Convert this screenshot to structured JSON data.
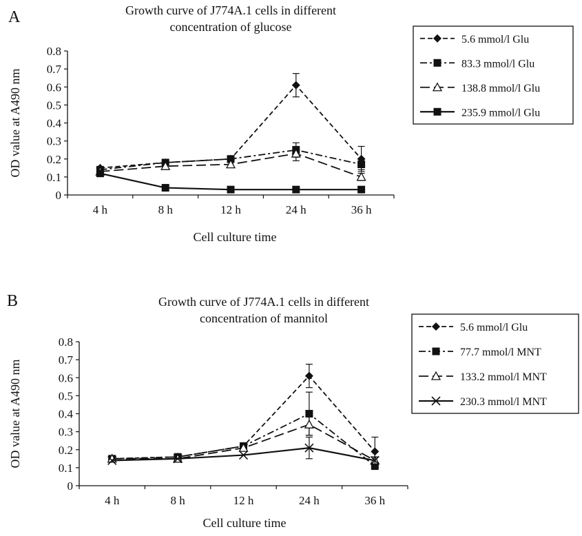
{
  "panels": [
    {
      "letter": "A",
      "chart_data": {
        "type": "line",
        "title": "Growth curve of J774A.1 cells in different concentration of glucose",
        "title_lines": [
          "Growth curve of J774A.1 cells in different",
          "concentration of glucose"
        ],
        "xlabel": "Cell culture time",
        "ylabel": "OD value at A490 nm",
        "categories": [
          "4 h",
          "8 h",
          "12 h",
          "24 h",
          "36 h"
        ],
        "ylim": [
          0,
          0.8
        ],
        "yticks": [
          "0",
          "0.1",
          "0.2",
          "0.3",
          "0.4",
          "0.5",
          "0.6",
          "0.7",
          "0.8"
        ],
        "grid": false,
        "legend_position": "top-right",
        "series": [
          {
            "name": "5.6 mmol/l Glu",
            "style": "dash",
            "marker": "diamond",
            "values": [
              0.15,
              0.18,
              0.2,
              0.61,
              0.2
            ],
            "errors": [
              0.005,
              0.01,
              0.01,
              0.065,
              0.07
            ]
          },
          {
            "name": "83.3 mmol/l Glu",
            "style": "dashdot",
            "marker": "square",
            "values": [
              0.14,
              0.18,
              0.2,
              0.25,
              0.17
            ],
            "errors": [
              0.005,
              0.01,
              0.01,
              0.04,
              0.03
            ]
          },
          {
            "name": "138.8 mmol/l Glu",
            "style": "longdash",
            "marker": "triangle",
            "values": [
              0.13,
              0.16,
              0.17,
              0.23,
              0.1
            ],
            "errors": [
              0.005,
              0.01,
              0.01,
              0.04,
              0.02
            ]
          },
          {
            "name": "235.9 mmol/l Glu",
            "style": "solid",
            "marker": "square",
            "values": [
              0.12,
              0.04,
              0.03,
              0.03,
              0.03
            ],
            "errors": [
              0.005,
              0.005,
              0.005,
              0.005,
              0.005
            ]
          }
        ]
      }
    },
    {
      "letter": "B",
      "chart_data": {
        "type": "line",
        "title": "Growth curve of J774A.1 cells in different concentration of mannitol",
        "title_lines": [
          "Growth curve of J774A.1 cells in different",
          "concentration of mannitol"
        ],
        "xlabel": "Cell culture time",
        "ylabel": "OD value at A490 nm",
        "categories": [
          "4 h",
          "8 h",
          "12 h",
          "24 h",
          "36 h"
        ],
        "ylim": [
          0,
          0.8
        ],
        "yticks": [
          "0",
          "0.1",
          "0.2",
          "0.3",
          "0.4",
          "0.5",
          "0.6",
          "0.7",
          "0.8"
        ],
        "grid": false,
        "legend_position": "top-right",
        "series": [
          {
            "name": "5.6 mmol/l Glu",
            "style": "dash",
            "marker": "diamond",
            "values": [
              0.15,
              0.16,
              0.22,
              0.61,
              0.19
            ],
            "errors": [
              0.005,
              0.01,
              0.01,
              0.065,
              0.08
            ]
          },
          {
            "name": "77.7 mmol/l MNT",
            "style": "dashdot",
            "marker": "square",
            "values": [
              0.15,
              0.16,
              0.22,
              0.4,
              0.11
            ],
            "errors": [
              0.005,
              0.01,
              0.01,
              0.12,
              0.02
            ]
          },
          {
            "name": "133.2 mmol/l MNT",
            "style": "longdash",
            "marker": "triangle",
            "values": [
              0.15,
              0.15,
              0.21,
              0.34,
              0.14
            ],
            "errors": [
              0.005,
              0.01,
              0.01,
              0.06,
              0.02
            ]
          },
          {
            "name": "230.3 mmol/l MNT",
            "style": "solid",
            "marker": "cross",
            "values": [
              0.14,
              0.15,
              0.17,
              0.21,
              0.14
            ],
            "errors": [
              0.005,
              0.005,
              0.005,
              0.06,
              0.02
            ]
          }
        ]
      }
    }
  ]
}
